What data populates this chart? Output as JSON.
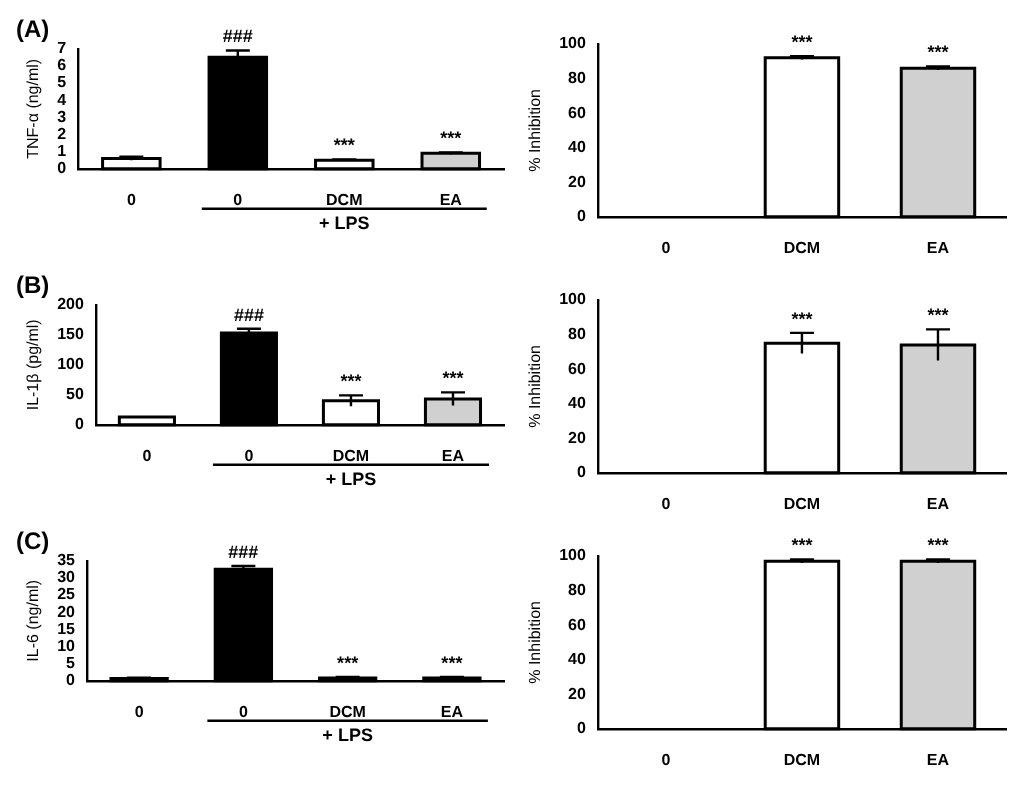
{
  "chart_data": [
    {
      "type": "bar",
      "title": "(A)",
      "ylabel": "TNF-α (ng/ml)",
      "categories": [
        "0",
        "0",
        "DCM",
        "EA"
      ],
      "values": [
        0.6,
        6.5,
        0.5,
        0.9
      ],
      "errors": [
        0.1,
        0.4,
        0.05,
        0.05
      ],
      "colors": [
        "#ffffff",
        "#000000",
        "#ffffff",
        "#d0d0d0"
      ],
      "value_labels": [
        null,
        "###",
        "***",
        "***"
      ],
      "ylim": [
        0,
        7
      ],
      "yticks": [
        0,
        1,
        2,
        3,
        4,
        5,
        6,
        7
      ],
      "annotations": [
        "+ LPS"
      ]
    },
    {
      "type": "bar",
      "ylabel": "% Inhibition",
      "categories": [
        "0",
        "DCM",
        "EA"
      ],
      "values": [
        0,
        92,
        86
      ],
      "errors": [
        null,
        1,
        1
      ],
      "colors": [
        "#ffffff",
        "#ffffff",
        "#d0d0d0"
      ],
      "value_labels": [
        null,
        "***",
        "***"
      ],
      "ylim": [
        0,
        100
      ],
      "yticks": [
        0,
        20,
        40,
        60,
        80,
        100
      ]
    },
    {
      "type": "bar",
      "title": "(B)",
      "ylabel": "IL-1β (pg/ml)",
      "categories": [
        "0",
        "0",
        "DCM",
        "EA"
      ],
      "values": [
        13,
        153,
        40,
        43
      ],
      "errors": [
        null,
        7,
        9,
        11
      ],
      "colors": [
        "#ffffff",
        "#000000",
        "#ffffff",
        "#d0d0d0"
      ],
      "value_labels": [
        null,
        "###",
        "***",
        "***"
      ],
      "ylim": [
        0,
        200
      ],
      "yticks": [
        0,
        50,
        100,
        150,
        200
      ],
      "annotations": [
        "+ LPS"
      ]
    },
    {
      "type": "bar",
      "ylabel": "% Inhibition",
      "categories": [
        "0",
        "DCM",
        "EA"
      ],
      "values": [
        0,
        75,
        74
      ],
      "errors": [
        null,
        6,
        9
      ],
      "colors": [
        "#ffffff",
        "#ffffff",
        "#d0d0d0"
      ],
      "value_labels": [
        null,
        "***",
        "***"
      ],
      "ylim": [
        0,
        100
      ],
      "yticks": [
        0,
        20,
        40,
        60,
        80,
        100
      ]
    },
    {
      "type": "bar",
      "title": "(C)",
      "ylabel": "IL-6 (ng/ml)",
      "categories": [
        "0",
        "0",
        "DCM",
        "EA"
      ],
      "values": [
        0.7,
        32.5,
        0.8,
        0.8
      ],
      "errors": [
        0.2,
        1,
        0.3,
        0.3
      ],
      "colors": [
        "#ffffff",
        "#000000",
        "#ffffff",
        "#d0d0d0"
      ],
      "value_labels": [
        null,
        "###",
        "***",
        "***"
      ],
      "ylim": [
        0,
        35
      ],
      "yticks": [
        0,
        5,
        10,
        15,
        20,
        25,
        30,
        35
      ],
      "annotations": [
        "+ LPS"
      ]
    },
    {
      "type": "bar",
      "ylabel": "% Inhibition",
      "categories": [
        "0",
        "DCM",
        "EA"
      ],
      "values": [
        0,
        97,
        97
      ],
      "errors": [
        null,
        1,
        1
      ],
      "colors": [
        "#ffffff",
        "#ffffff",
        "#d0d0d0"
      ],
      "value_labels": [
        null,
        "***",
        "***"
      ],
      "ylim": [
        0,
        100
      ],
      "yticks": [
        0,
        20,
        40,
        60,
        80,
        100
      ]
    }
  ]
}
